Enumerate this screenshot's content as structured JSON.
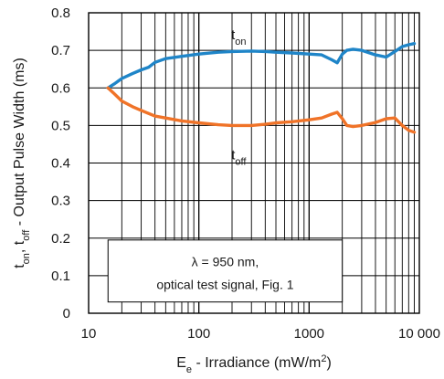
{
  "chart_data": {
    "type": "line",
    "xscale": "log",
    "xlim": [
      10,
      10000
    ],
    "ylim": [
      0,
      0.8
    ],
    "grid": true,
    "xlabel": {
      "main": "E",
      "sub": "e",
      "rest": " - Irradiance (mW/m",
      "sup": "2",
      "end": ")"
    },
    "ylabel": {
      "p1": "t",
      "s1": "on",
      "p2": ", t",
      "s2": "off",
      "p3": " - Output Pulse Width (ms)"
    },
    "x_ticks": [
      10,
      100,
      1000,
      10000
    ],
    "x_tick_labels": [
      "10",
      "100",
      "1000",
      "10 000"
    ],
    "y_ticks": [
      0,
      0.1,
      0.2,
      0.3,
      0.4,
      0.5,
      0.6,
      0.7,
      0.8
    ],
    "y_tick_labels": [
      "0",
      "0.1",
      "0.2",
      "0.3",
      "0.4",
      "0.5",
      "0.6",
      "0.7",
      "0.8"
    ],
    "annotation": {
      "line1": "λ = 950 nm,",
      "line2": "optical test signal, Fig. 1"
    },
    "series": [
      {
        "label_main": "t",
        "label_sub": "on",
        "label_at": [
          230,
          0.73
        ],
        "color": "#1f85c8",
        "x": [
          15,
          17,
          20,
          25,
          30,
          35,
          40,
          50,
          70,
          100,
          150,
          200,
          300,
          400,
          500,
          700,
          1000,
          1300,
          1600,
          1800,
          2000,
          2200,
          2500,
          3000,
          4000,
          5000,
          6000,
          7000,
          8000,
          9000
        ],
        "y": [
          0.6,
          0.61,
          0.625,
          0.638,
          0.648,
          0.655,
          0.668,
          0.678,
          0.684,
          0.69,
          0.695,
          0.697,
          0.698,
          0.697,
          0.695,
          0.693,
          0.69,
          0.688,
          0.675,
          0.667,
          0.69,
          0.7,
          0.703,
          0.7,
          0.688,
          0.682,
          0.697,
          0.71,
          0.715,
          0.718
        ]
      },
      {
        "label_main": "t",
        "label_sub": "off",
        "label_at": [
          230,
          0.41
        ],
        "color": "#f07328",
        "x": [
          15,
          17,
          20,
          25,
          30,
          40,
          50,
          70,
          100,
          150,
          200,
          300,
          400,
          500,
          700,
          1000,
          1300,
          1600,
          1800,
          2000,
          2200,
          2500,
          3000,
          4000,
          5000,
          6000,
          7000,
          8000,
          9000
        ],
        "y": [
          0.6,
          0.585,
          0.565,
          0.55,
          0.54,
          0.525,
          0.52,
          0.512,
          0.507,
          0.502,
          0.5,
          0.5,
          0.503,
          0.507,
          0.51,
          0.515,
          0.52,
          0.53,
          0.535,
          0.518,
          0.5,
          0.497,
          0.5,
          0.508,
          0.518,
          0.52,
          0.5,
          0.487,
          0.482
        ]
      }
    ]
  }
}
